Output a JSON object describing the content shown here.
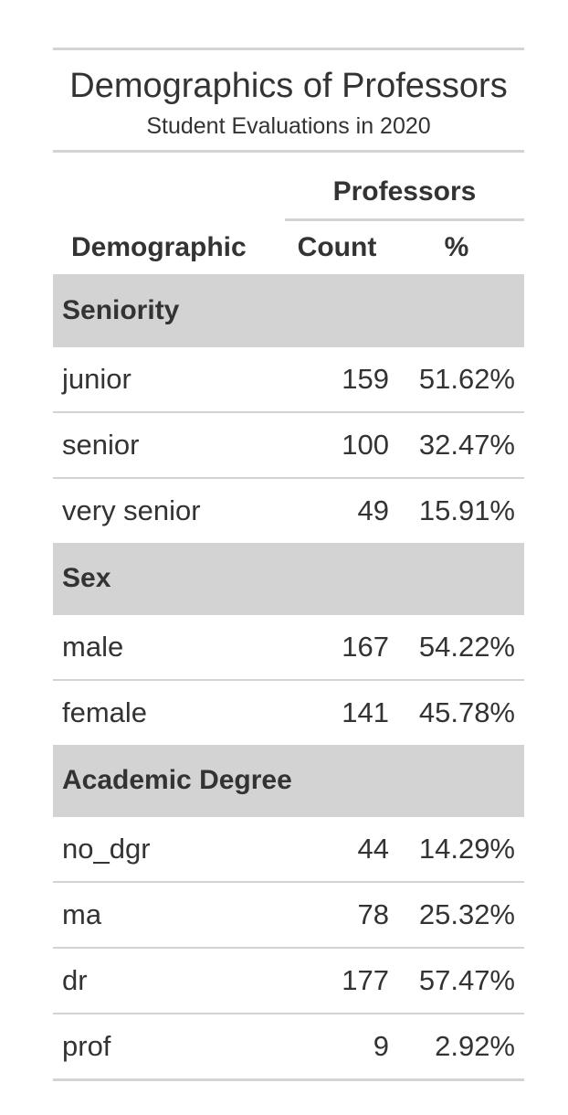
{
  "title": "Demographics of Professors",
  "subtitle": "Student Evaluations in 2020",
  "spanner": "Professors",
  "columns": {
    "demographic": "Demographic",
    "count": "Count",
    "percent": "%"
  },
  "groups": [
    {
      "label": "Seniority",
      "rows": [
        {
          "label": "junior",
          "count": "159",
          "percent": "51.62%"
        },
        {
          "label": "senior",
          "count": "100",
          "percent": "32.47%"
        },
        {
          "label": "very senior",
          "count": "49",
          "percent": "15.91%"
        }
      ]
    },
    {
      "label": "Sex",
      "rows": [
        {
          "label": "male",
          "count": "167",
          "percent": "54.22%"
        },
        {
          "label": "female",
          "count": "141",
          "percent": "45.78%"
        }
      ]
    },
    {
      "label": "Academic Degree",
      "rows": [
        {
          "label": "no_dgr",
          "count": "44",
          "percent": "14.29%"
        },
        {
          "label": "ma",
          "count": "78",
          "percent": "25.32%"
        },
        {
          "label": "dr",
          "count": "177",
          "percent": "57.47%"
        },
        {
          "label": "prof",
          "count": "9",
          "percent": "2.92%"
        }
      ]
    }
  ]
}
